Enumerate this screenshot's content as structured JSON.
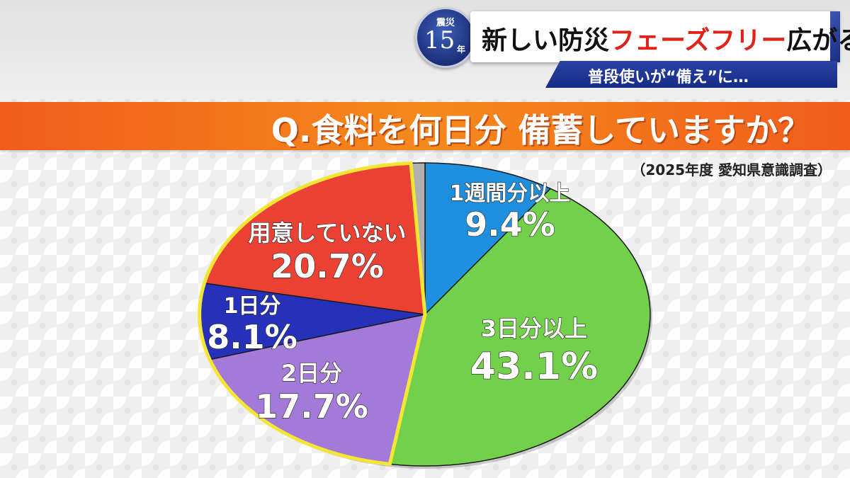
{
  "badge": {
    "top": "震災",
    "number": "15",
    "unit": "年"
  },
  "header": {
    "title_part1": "新しい防災",
    "title_part2": "フェーズフリー",
    "title_part3": "広がる",
    "subtitle": "普段使いが“備え”に…"
  },
  "question": "Q.食料を何日分 備蓄していますか？",
  "source": "（2025年度 愛知県意識調査）",
  "colors": {
    "banner_orange": "#f26a1c",
    "header_blue": "#1c2f7a",
    "highlight_red": "#e0231a"
  },
  "chart_data": {
    "type": "pie",
    "title": "Q.食料を何日分 備蓄していますか？",
    "unit": "%",
    "slices": [
      {
        "name": "1週間分以上",
        "value": 9.4,
        "value_label": "9.4%",
        "color": "#1e8fdc"
      },
      {
        "name": "3日分以上",
        "value": 43.1,
        "value_label": "43.1%",
        "color": "#73d04a"
      },
      {
        "name": "2日分",
        "value": 17.7,
        "value_label": "17.7%",
        "color": "#a47ad8"
      },
      {
        "name": "1日分",
        "value": 8.1,
        "value_label": "8.1%",
        "color": "#2531b8"
      },
      {
        "name": "用意していない",
        "value": 20.7,
        "value_label": "20.7%",
        "color": "#ea4134"
      }
    ],
    "remainder": {
      "value": 1.0,
      "color": "#b0b0b0"
    },
    "start_angle_deg": 0,
    "direction": "clockwise",
    "highlight_outline": {
      "series": [
        "用意していない",
        "1日分",
        "2日分"
      ],
      "color": "#f5e634"
    }
  }
}
